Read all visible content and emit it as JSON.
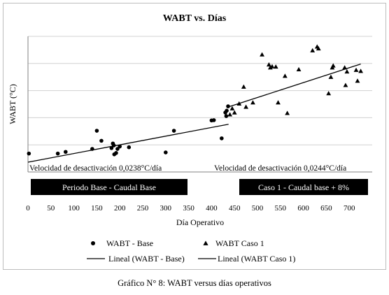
{
  "chart_data": {
    "type": "scatter",
    "title": "WABT vs. Días",
    "xlabel": "Día Operativo",
    "ylabel": "WABT (°C)",
    "xlim": [
      0,
      750
    ],
    "x_ticks": [
      0,
      50,
      100,
      150,
      200,
      250,
      300,
      350,
      400,
      450,
      500,
      550,
      600,
      650,
      700
    ],
    "ylim": [
      0,
      5
    ],
    "y_tick_labels_shown": false,
    "grid": "horizontal",
    "legend_position": "bottom",
    "series": [
      {
        "name": "WABT - Base",
        "marker": "circle",
        "points": [
          [
            2,
            0.68
          ],
          [
            65,
            0.68
          ],
          [
            82,
            0.74
          ],
          [
            140,
            0.85
          ],
          [
            150,
            1.52
          ],
          [
            160,
            1.15
          ],
          [
            182,
            0.88
          ],
          [
            185,
            1.05
          ],
          [
            187,
            0.98
          ],
          [
            188,
            0.65
          ],
          [
            192,
            0.7
          ],
          [
            195,
            0.85
          ],
          [
            200,
            0.94
          ],
          [
            220,
            0.91
          ],
          [
            300,
            0.72
          ],
          [
            318,
            1.52
          ],
          [
            400,
            1.9
          ],
          [
            405,
            1.91
          ],
          [
            422,
            1.24
          ],
          [
            430,
            2.19
          ],
          [
            432,
            2.06
          ],
          [
            433,
            2.26
          ],
          [
            436,
            2.42
          ]
        ]
      },
      {
        "name": "WABT Caso 1",
        "marker": "triangle",
        "points": [
          [
            440,
            2.12
          ],
          [
            445,
            2.34
          ],
          [
            450,
            2.19
          ],
          [
            460,
            2.52
          ],
          [
            470,
            3.14
          ],
          [
            475,
            2.4
          ],
          [
            490,
            2.56
          ],
          [
            510,
            4.33
          ],
          [
            525,
            3.96
          ],
          [
            528,
            3.85
          ],
          [
            532,
            3.89
          ],
          [
            540,
            3.88
          ],
          [
            545,
            2.56
          ],
          [
            560,
            3.54
          ],
          [
            565,
            2.17
          ],
          [
            590,
            3.78
          ],
          [
            620,
            4.48
          ],
          [
            630,
            4.62
          ],
          [
            633,
            4.55
          ],
          [
            655,
            2.9
          ],
          [
            660,
            3.5
          ],
          [
            663,
            3.85
          ],
          [
            665,
            3.92
          ],
          [
            690,
            3.85
          ],
          [
            692,
            3.2
          ],
          [
            695,
            3.7
          ],
          [
            715,
            3.76
          ],
          [
            718,
            3.36
          ],
          [
            725,
            3.72
          ]
        ]
      }
    ],
    "trendlines": [
      {
        "name": "Lineal (WABT - Base)",
        "x_range": [
          0,
          437
        ],
        "y_start": 0.36,
        "y_end": 1.76
      },
      {
        "name": "Lineal (WABT Caso 1)",
        "x_range": [
          437,
          725
        ],
        "y_start": 2.4,
        "y_end": 3.98
      }
    ],
    "annotations": [
      "Velocidad  de desactivación  0,0238°C/día",
      "Velocidad  de desactivación  0,0244°C/día"
    ],
    "banners": [
      "Periodo Base - Caudal Base",
      "Caso 1 - Caudal base + 8%"
    ]
  },
  "caption": "Gráfico N° 8: WABT versus días operativos"
}
